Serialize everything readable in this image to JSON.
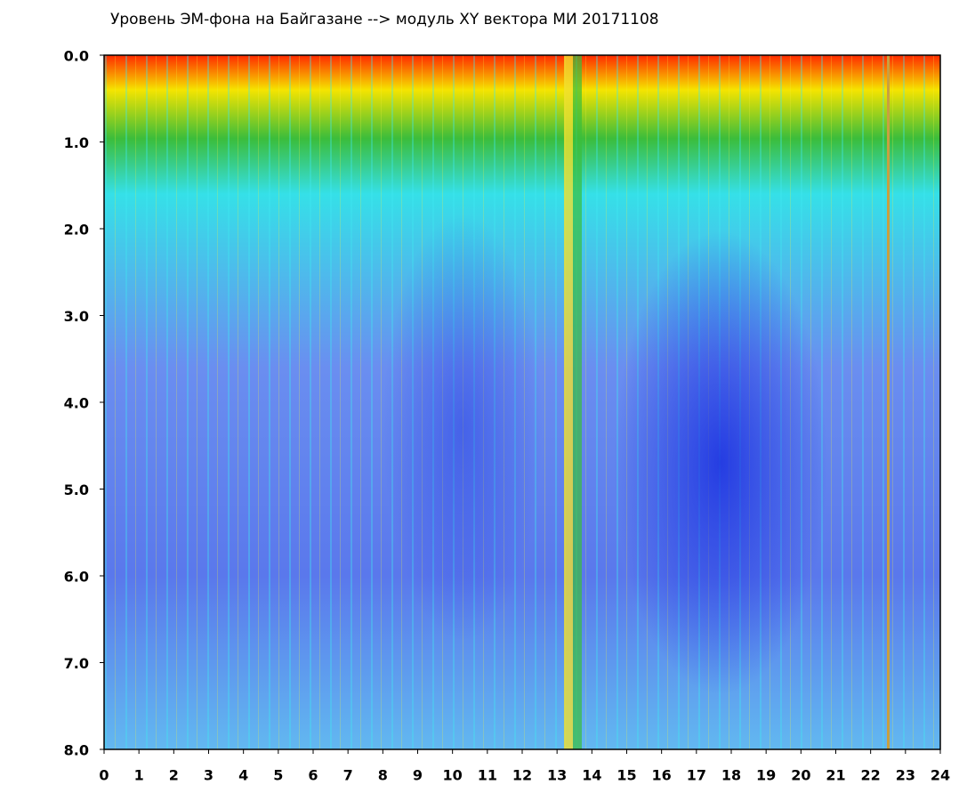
{
  "chart_data": {
    "type": "heatmap",
    "title": "Уровень ЭМ-фона на Байгазане  -->  модуль XY вектора МИ  20171108",
    "xlim": [
      0,
      24
    ],
    "xticks": [
      0,
      1,
      2,
      3,
      4,
      5,
      6,
      7,
      8,
      9,
      10,
      11,
      12,
      13,
      14,
      15,
      16,
      17,
      18,
      19,
      20,
      21,
      22,
      23,
      24
    ],
    "ylim": [
      0,
      8
    ],
    "y_inverted": true,
    "yticks": [
      {
        "value": 0,
        "label": "0.0"
      },
      {
        "value": 1,
        "label": "1.0"
      },
      {
        "value": 2,
        "label": "2.0"
      },
      {
        "value": 3,
        "label": "3.0"
      },
      {
        "value": 4,
        "label": "4.0"
      },
      {
        "value": 5,
        "label": "5.0"
      },
      {
        "value": 6,
        "label": "6.0"
      },
      {
        "value": 7,
        "label": "7.0"
      },
      {
        "value": 8,
        "label": "8.0"
      }
    ]
  }
}
